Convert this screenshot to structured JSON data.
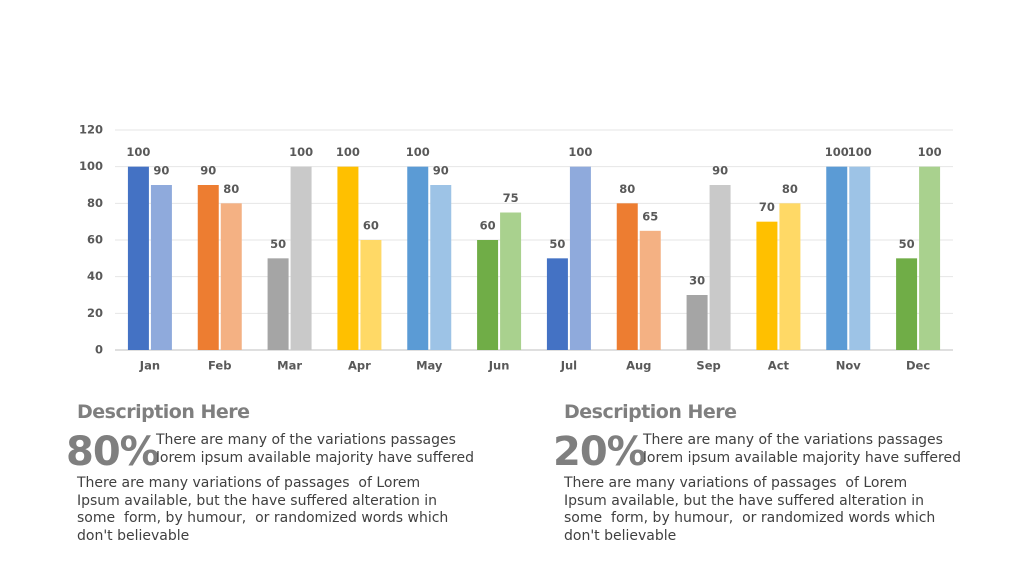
{
  "chart_data": {
    "type": "bar",
    "categories": [
      "Jan",
      "Feb",
      "Mar",
      "Apr",
      "May",
      "Jun",
      "Jul",
      "Aug",
      "Sep",
      "Act",
      "Nov",
      "Dec"
    ],
    "series": [
      {
        "values": [
          100,
          90,
          50,
          100,
          100,
          60,
          50,
          80,
          30,
          70,
          100,
          50
        ],
        "colors": [
          "#4472c4",
          "#ed7d31",
          "#a5a5a5",
          "#ffc000",
          "#5b9bd5",
          "#70ad47",
          "#4472c4",
          "#ed7d31",
          "#a5a5a5",
          "#ffc000",
          "#5b9bd5",
          "#70ad47"
        ]
      },
      {
        "values": [
          90,
          80,
          100,
          60,
          90,
          75,
          100,
          65,
          90,
          80,
          100,
          100
        ],
        "colors": [
          "#8faadc",
          "#f4b183",
          "#c9c9c9",
          "#ffd966",
          "#9dc3e6",
          "#a9d18e",
          "#8faadc",
          "#f4b183",
          "#c9c9c9",
          "#ffd966",
          "#9dc3e6",
          "#a9d18e"
        ]
      }
    ],
    "ylim": [
      0,
      120
    ],
    "yticks": [
      0,
      20,
      40,
      60,
      80,
      100,
      120
    ],
    "grid": true,
    "data_labels": true
  },
  "panels": [
    {
      "heading": "Description Here",
      "percent": "80%",
      "lead": [
        "There are many of the variations passages",
        "lorem ipsum available majority have suffered"
      ],
      "body": [
        "There are many variations of passages  of Lorem",
        "Ipsum available, but the have suffered alteration in",
        "some  form, by humour,  or randomized words which",
        "don't believable"
      ]
    },
    {
      "heading": "Description Here",
      "percent": "20%",
      "lead": [
        "There are many of the variations passages",
        "lorem ipsum available majority have suffered"
      ],
      "body": [
        "There are many variations of passages  of Lorem",
        "Ipsum available, but the have suffered alteration in",
        "some  form, by humour,  or randomized words which",
        "don't believable"
      ]
    }
  ]
}
